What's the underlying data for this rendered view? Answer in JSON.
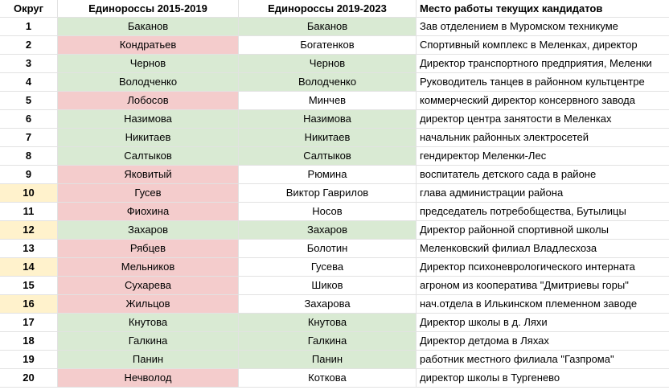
{
  "table": {
    "header": [
      "Округ",
      "Единороссы 2015-2019",
      "Единороссы 2019-2023",
      "Место работы текущих кандидатов"
    ],
    "rows": [
      [
        "1",
        "Баканов",
        "Баканов",
        "Зав отделением в Муромском техникуме"
      ],
      [
        "2",
        "Кондратьев",
        "Богатенков",
        "Спортивный комплекс в Меленках, директор"
      ],
      [
        "3",
        "Чернов",
        "Чернов",
        "Директор транспортного предприятия, Меленки"
      ],
      [
        "4",
        "Володченко",
        "Володченко",
        "Руководитель танцев в районном культцентре"
      ],
      [
        "5",
        "Лобосов",
        "Минчев",
        "коммерческий директор консервного завода"
      ],
      [
        "6",
        "Назимова",
        "Назимова",
        "директор центра занятости в Меленках"
      ],
      [
        "7",
        "Никитаев",
        "Никитаев",
        "начальник районных электросетей"
      ],
      [
        "8",
        "Салтыков",
        "Салтыков",
        "гендиректор Меленки-Лес"
      ],
      [
        "9",
        "Яковитый",
        "Рюмина",
        "воспитатель детского сада в районе"
      ],
      [
        "10",
        "Гусев",
        "Виктор Гаврилов",
        "глава администрации района"
      ],
      [
        "11",
        "Фиохина",
        "Носов",
        "председатель потребобщества, Бутылицы"
      ],
      [
        "12",
        "Захаров",
        "Захаров",
        "Директор районной спортивной школы"
      ],
      [
        "13",
        "Рябцев",
        "Болотин",
        "Меленковский филиал Владлесхоза"
      ],
      [
        "14",
        "Мельников",
        "Гусева",
        "Директор психоневрологического интерната"
      ],
      [
        "15",
        "Сухарева",
        "Шиков",
        "агроном из кооператива \"Дмитриевы горы\""
      ],
      [
        "16",
        "Жильцов",
        "Захарова",
        "нач.отдела в Илькинском племенном заводе"
      ],
      [
        "17",
        "Кнутова",
        "Кнутова",
        "Директор школы в д. Ляхи"
      ],
      [
        "18",
        "Галкина",
        "Галкина",
        "Директор детдома в Ляхах"
      ],
      [
        "19",
        "Панин",
        "Панин",
        "работник местного филиала \"Газпрома\""
      ],
      [
        "20",
        "Нечволод",
        "Коткова",
        "директор школы в Тургенево"
      ]
    ],
    "fills": [
      [
        "#ffffff",
        "#d9ead3",
        "#d9ead3",
        "#ffffff"
      ],
      [
        "#ffffff",
        "#f4cccc",
        "#ffffff",
        "#ffffff"
      ],
      [
        "#ffffff",
        "#d9ead3",
        "#d9ead3",
        "#ffffff"
      ],
      [
        "#ffffff",
        "#d9ead3",
        "#d9ead3",
        "#ffffff"
      ],
      [
        "#ffffff",
        "#f4cccc",
        "#ffffff",
        "#ffffff"
      ],
      [
        "#ffffff",
        "#d9ead3",
        "#d9ead3",
        "#ffffff"
      ],
      [
        "#ffffff",
        "#d9ead3",
        "#d9ead3",
        "#ffffff"
      ],
      [
        "#ffffff",
        "#d9ead3",
        "#d9ead3",
        "#ffffff"
      ],
      [
        "#ffffff",
        "#f4cccc",
        "#ffffff",
        "#ffffff"
      ],
      [
        "#fff2cc",
        "#f4cccc",
        "#ffffff",
        "#ffffff"
      ],
      [
        "#ffffff",
        "#f4cccc",
        "#ffffff",
        "#ffffff"
      ],
      [
        "#fff2cc",
        "#d9ead3",
        "#d9ead3",
        "#ffffff"
      ],
      [
        "#ffffff",
        "#f4cccc",
        "#ffffff",
        "#ffffff"
      ],
      [
        "#fff2cc",
        "#f4cccc",
        "#ffffff",
        "#ffffff"
      ],
      [
        "#ffffff",
        "#f4cccc",
        "#ffffff",
        "#ffffff"
      ],
      [
        "#fff2cc",
        "#f4cccc",
        "#ffffff",
        "#ffffff"
      ],
      [
        "#ffffff",
        "#d9ead3",
        "#d9ead3",
        "#ffffff"
      ],
      [
        "#ffffff",
        "#d9ead3",
        "#d9ead3",
        "#ffffff"
      ],
      [
        "#ffffff",
        "#d9ead3",
        "#d9ead3",
        "#ffffff"
      ],
      [
        "#ffffff",
        "#f4cccc",
        "#ffffff",
        "#ffffff"
      ]
    ]
  }
}
